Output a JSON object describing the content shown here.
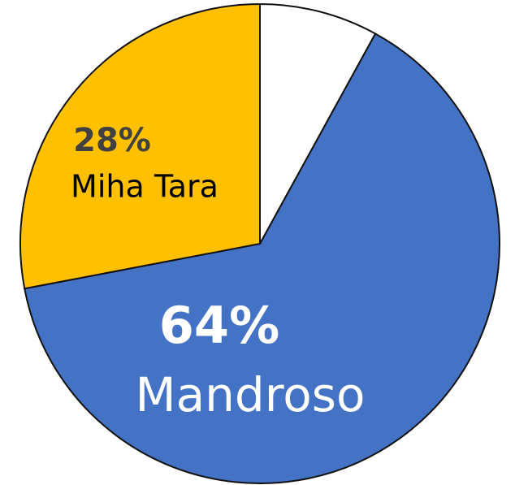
{
  "chart_data": {
    "type": "pie",
    "categories": [
      null,
      "Mandroso",
      "Miha Tara"
    ],
    "values": [
      8,
      64,
      28
    ],
    "value_labels": [
      null,
      "64%",
      "28%"
    ],
    "colors": [
      "#ffffff",
      "#4472c4",
      "#ffc000"
    ]
  }
}
